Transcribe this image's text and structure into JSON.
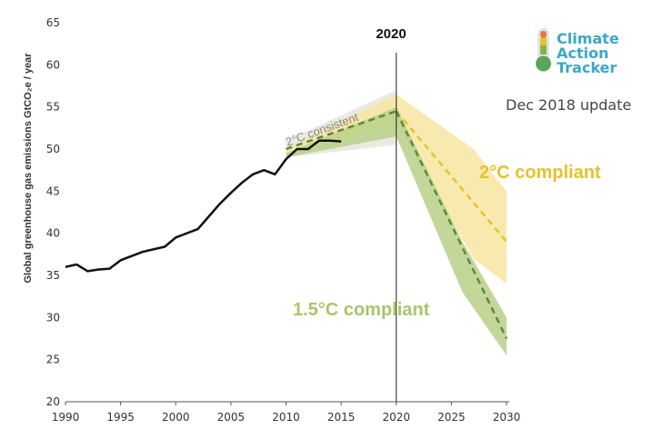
{
  "chart_data": {
    "type": "line",
    "ylabel": "Global greenhouse gas emissions  GtCO₂e / year",
    "xlim": [
      1990,
      2030
    ],
    "ylim": [
      20,
      65
    ],
    "x_ticks": [
      1990,
      1995,
      2000,
      2005,
      2010,
      2015,
      2020,
      2025,
      2030
    ],
    "y_ticks": [
      20,
      25,
      30,
      35,
      40,
      45,
      50,
      55,
      60,
      65
    ],
    "grid": false,
    "historical": {
      "x": [
        1990,
        1991,
        1992,
        1993,
        1994,
        1995,
        1996,
        1997,
        1998,
        1999,
        2000,
        2001,
        2002,
        2003,
        2004,
        2005,
        2006,
        2007,
        2008,
        2009,
        2010,
        2011,
        2012,
        2013,
        2014,
        2015
      ],
      "y": [
        36.0,
        36.3,
        35.5,
        35.7,
        35.8,
        36.8,
        37.3,
        37.8,
        38.1,
        38.4,
        39.5,
        40.0,
        40.5,
        42.0,
        43.5,
        44.8,
        46.0,
        47.0,
        47.5,
        47.0,
        48.8,
        50.0,
        50.0,
        51.0,
        51.0,
        50.9
      ]
    },
    "bands": {
      "two_c_range": {
        "x": [
          2010,
          2020,
          2027,
          2030
        ],
        "upper": [
          50,
          56.5,
          50,
          45
        ],
        "lower": [
          49.5,
          53,
          37,
          34
        ]
      },
      "one_five_c_range": {
        "x": [
          2010,
          2020,
          2026,
          2030
        ],
        "upper": [
          49.5,
          55,
          39,
          30
        ],
        "lower": [
          49,
          51.5,
          33,
          25.5
        ]
      },
      "two_c_consistent_range": {
        "x": [
          2010,
          2020
        ],
        "upper": [
          51,
          57
        ],
        "lower": [
          49,
          50.5
        ]
      }
    },
    "series": [
      {
        "name": "2°C compliant",
        "x": [
          2020,
          2030
        ],
        "y": [
          54.5,
          39
        ],
        "color": "#e8c12a",
        "style": "dashed"
      },
      {
        "name": "1.5°C compliant",
        "x": [
          2020,
          2030
        ],
        "y": [
          54.5,
          27.5
        ],
        "color": "#5b8a3a",
        "style": "dashed"
      },
      {
        "name": "",
        "x": [
          2010,
          2020
        ],
        "y": [
          50,
          54.5
        ],
        "color": "#5b8a3a",
        "style": "dashed"
      }
    ],
    "annotations": {
      "year_marker": "2020",
      "consistent_label": "2°C consistent",
      "two_c_label": "2°C compliant",
      "one_five_label": "1.5°C compliant",
      "update": "Dec 2018 update"
    }
  },
  "logo": {
    "line1": "Climate",
    "line2": "Action",
    "line3": "Tracker",
    "icon": "thermometer-icon"
  },
  "colors": {
    "historical": "#111111",
    "two_c": "#e8c12a",
    "two_c_fill": "#f7e6a0",
    "one_five": "#5b8a3a",
    "one_five_fill": "#b9d08a",
    "logo_blue": "#3aa7c7",
    "logo_green": "#7fb54a"
  }
}
